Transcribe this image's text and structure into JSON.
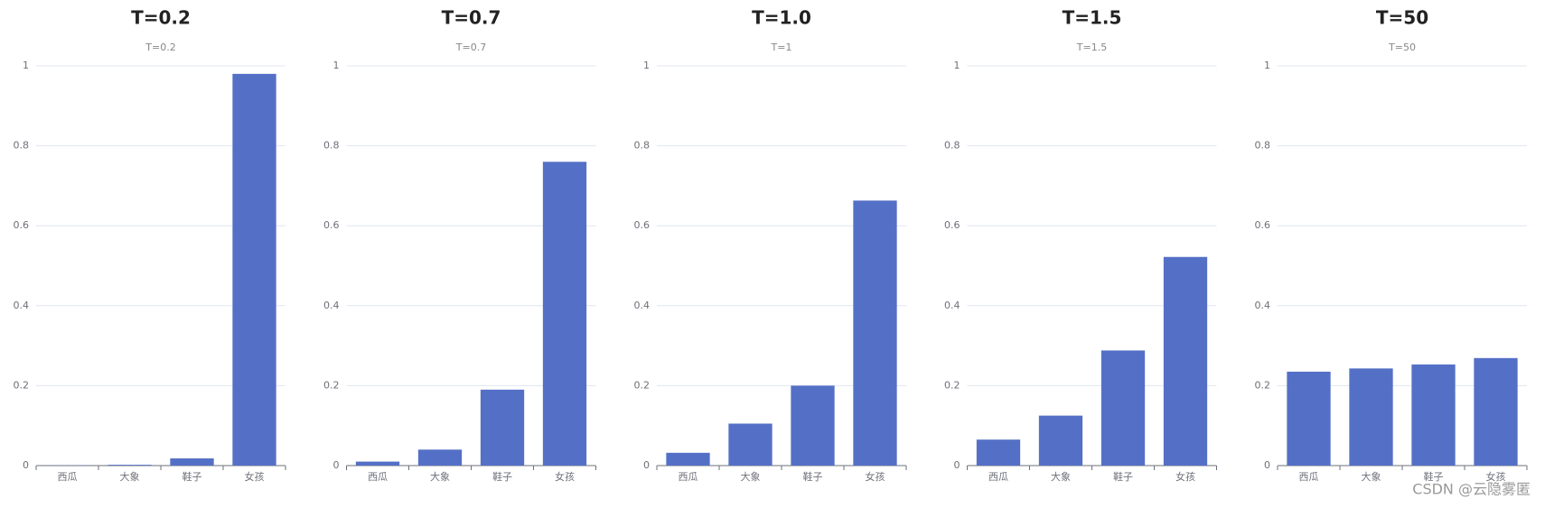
{
  "chart_data": [
    {
      "type": "bar",
      "title": "T=0.2",
      "subtitle": "T=0.2",
      "categories": [
        "西瓜",
        "大象",
        "鞋子",
        "女孩"
      ],
      "values": [
        0.0005,
        0.002,
        0.018,
        0.98
      ],
      "color": "#5470c6",
      "ylim": [
        0,
        1
      ],
      "yticks": [
        0,
        0.2,
        0.4,
        0.6,
        0.8,
        1
      ],
      "grid": true
    },
    {
      "type": "bar",
      "title": "T=0.7",
      "subtitle": "T=0.7",
      "categories": [
        "西瓜",
        "大象",
        "鞋子",
        "女孩"
      ],
      "values": [
        0.01,
        0.04,
        0.19,
        0.76
      ],
      "color": "#5470c6",
      "ylim": [
        0,
        1
      ],
      "yticks": [
        0,
        0.2,
        0.4,
        0.6,
        0.8,
        1
      ],
      "grid": true
    },
    {
      "type": "bar",
      "title": "T=1.0",
      "subtitle": "T=1",
      "categories": [
        "西瓜",
        "大象",
        "鞋子",
        "女孩"
      ],
      "values": [
        0.032,
        0.105,
        0.2,
        0.663
      ],
      "color": "#5470c6",
      "ylim": [
        0,
        1
      ],
      "yticks": [
        0,
        0.2,
        0.4,
        0.6,
        0.8,
        1
      ],
      "grid": true
    },
    {
      "type": "bar",
      "title": "T=1.5",
      "subtitle": "T=1.5",
      "categories": [
        "西瓜",
        "大象",
        "鞋子",
        "女孩"
      ],
      "values": [
        0.065,
        0.125,
        0.288,
        0.522
      ],
      "color": "#5470c6",
      "ylim": [
        0,
        1
      ],
      "yticks": [
        0,
        0.2,
        0.4,
        0.6,
        0.8,
        1
      ],
      "grid": true
    },
    {
      "type": "bar",
      "title": "T=50",
      "subtitle": "T=50",
      "categories": [
        "西瓜",
        "大象",
        "鞋子",
        "女孩"
      ],
      "values": [
        0.235,
        0.243,
        0.253,
        0.269
      ],
      "color": "#5470c6",
      "ylim": [
        0,
        1
      ],
      "yticks": [
        0,
        0.2,
        0.4,
        0.6,
        0.8,
        1
      ],
      "grid": true
    }
  ],
  "watermark": "CSDN @云隐雾匿"
}
